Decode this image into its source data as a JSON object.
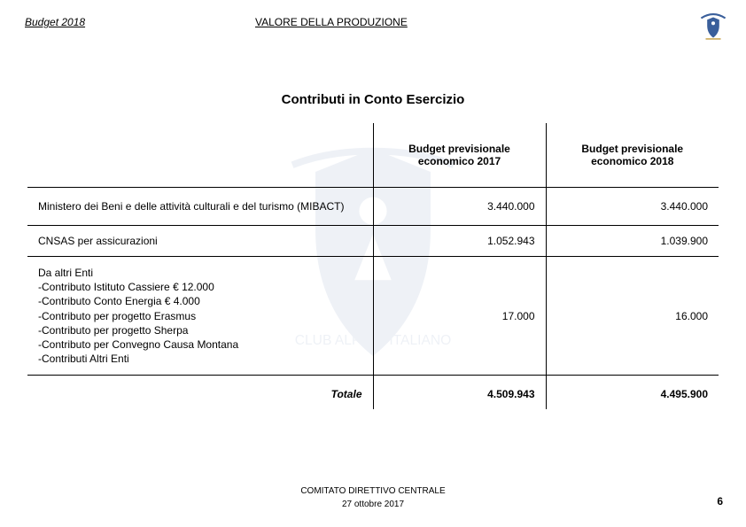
{
  "header": {
    "budget_label": "Budget  2018",
    "title": "VALORE DELLA PRODUZIONE"
  },
  "section_title": "Contributi in Conto Esercizio",
  "table": {
    "columns": [
      "",
      "Budget previsionale economico 2017",
      "Budget previsionale economico 2018"
    ],
    "rows": [
      {
        "desc": "Ministero dei Beni e delle attività culturali e del turismo (MIBACT)",
        "v2017": "3.440.000",
        "v2018": "3.440.000"
      },
      {
        "desc": "CNSAS per assicurazioni",
        "v2017": "1.052.943",
        "v2018": "1.039.900"
      },
      {
        "desc": "Da altri Enti\n-Contributo Istituto Cassiere  € 12.000\n-Contributo Conto Energia € 4.000\n-Contributo per progetto Erasmus\n-Contributo per progetto Sherpa\n-Contributo per Convegno  Causa Montana\n-Contributi Altri Enti",
        "v2017": "17.000",
        "v2018": "16.000"
      }
    ],
    "total": {
      "label": "Totale",
      "v2017": "4.509.943",
      "v2018": "4.495.900"
    }
  },
  "footer": {
    "line1": "COMITATO DIRETTIVO CENTRALE",
    "line2": "27 ottobre 2017"
  },
  "page_number": "6",
  "colors": {
    "logo_primary": "#3a5f9b",
    "logo_accent": "#c29a3a"
  }
}
